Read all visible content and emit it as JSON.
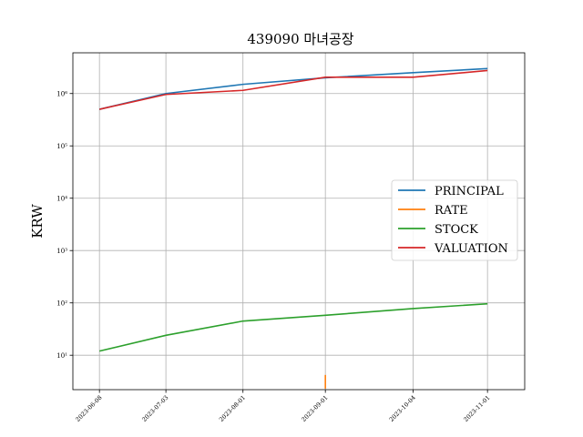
{
  "chart_data": {
    "type": "line",
    "title": "439090 마녀공장",
    "xlabel": "",
    "ylabel": "KRW",
    "y_scale": "log",
    "ylim": [
      2.2,
      6000000
    ],
    "x_ticks": [
      "2023-06-08",
      "2023-07-03",
      "2023-08-01",
      "2023-09-01",
      "2023-10-04",
      "2023-11-01"
    ],
    "x_range": [
      "2023-05-29",
      "2023-11-15"
    ],
    "y_ticks": [
      {
        "value": 10,
        "label": "10¹"
      },
      {
        "value": 100,
        "label": "10²"
      },
      {
        "value": 1000,
        "label": "10³"
      },
      {
        "value": 10000,
        "label": "10⁴"
      },
      {
        "value": 100000,
        "label": "10⁵"
      },
      {
        "value": 1000000,
        "label": "10⁶"
      }
    ],
    "grid": true,
    "legend_position": "center-right",
    "series": [
      {
        "name": "PRINCIPAL",
        "color": "#1f77b4",
        "points": [
          [
            "2023-06-08",
            500000
          ],
          [
            "2023-07-03",
            1000000
          ],
          [
            "2023-08-01",
            1500000
          ],
          [
            "2023-09-01",
            2000000
          ],
          [
            "2023-10-04",
            2500000
          ],
          [
            "2023-11-01",
            3000000
          ]
        ]
      },
      {
        "name": "RATE",
        "color": "#ff7f0e",
        "points": [
          [
            "2023-09-01",
            4.2
          ],
          [
            "2023-09-01",
            2.3
          ]
        ]
      },
      {
        "name": "STOCK",
        "color": "#2ca02c",
        "points": [
          [
            "2023-06-08",
            12
          ],
          [
            "2023-07-03",
            24
          ],
          [
            "2023-08-01",
            45
          ],
          [
            "2023-09-01",
            58
          ],
          [
            "2023-10-04",
            78
          ],
          [
            "2023-11-01",
            96
          ]
        ]
      },
      {
        "name": "VALUATION",
        "color": "#d62728",
        "points": [
          [
            "2023-06-08",
            500000
          ],
          [
            "2023-07-03",
            960000
          ],
          [
            "2023-08-01",
            1150000
          ],
          [
            "2023-09-01",
            2050000
          ],
          [
            "2023-10-04",
            2050000
          ],
          [
            "2023-11-01",
            2750000
          ]
        ]
      }
    ]
  }
}
